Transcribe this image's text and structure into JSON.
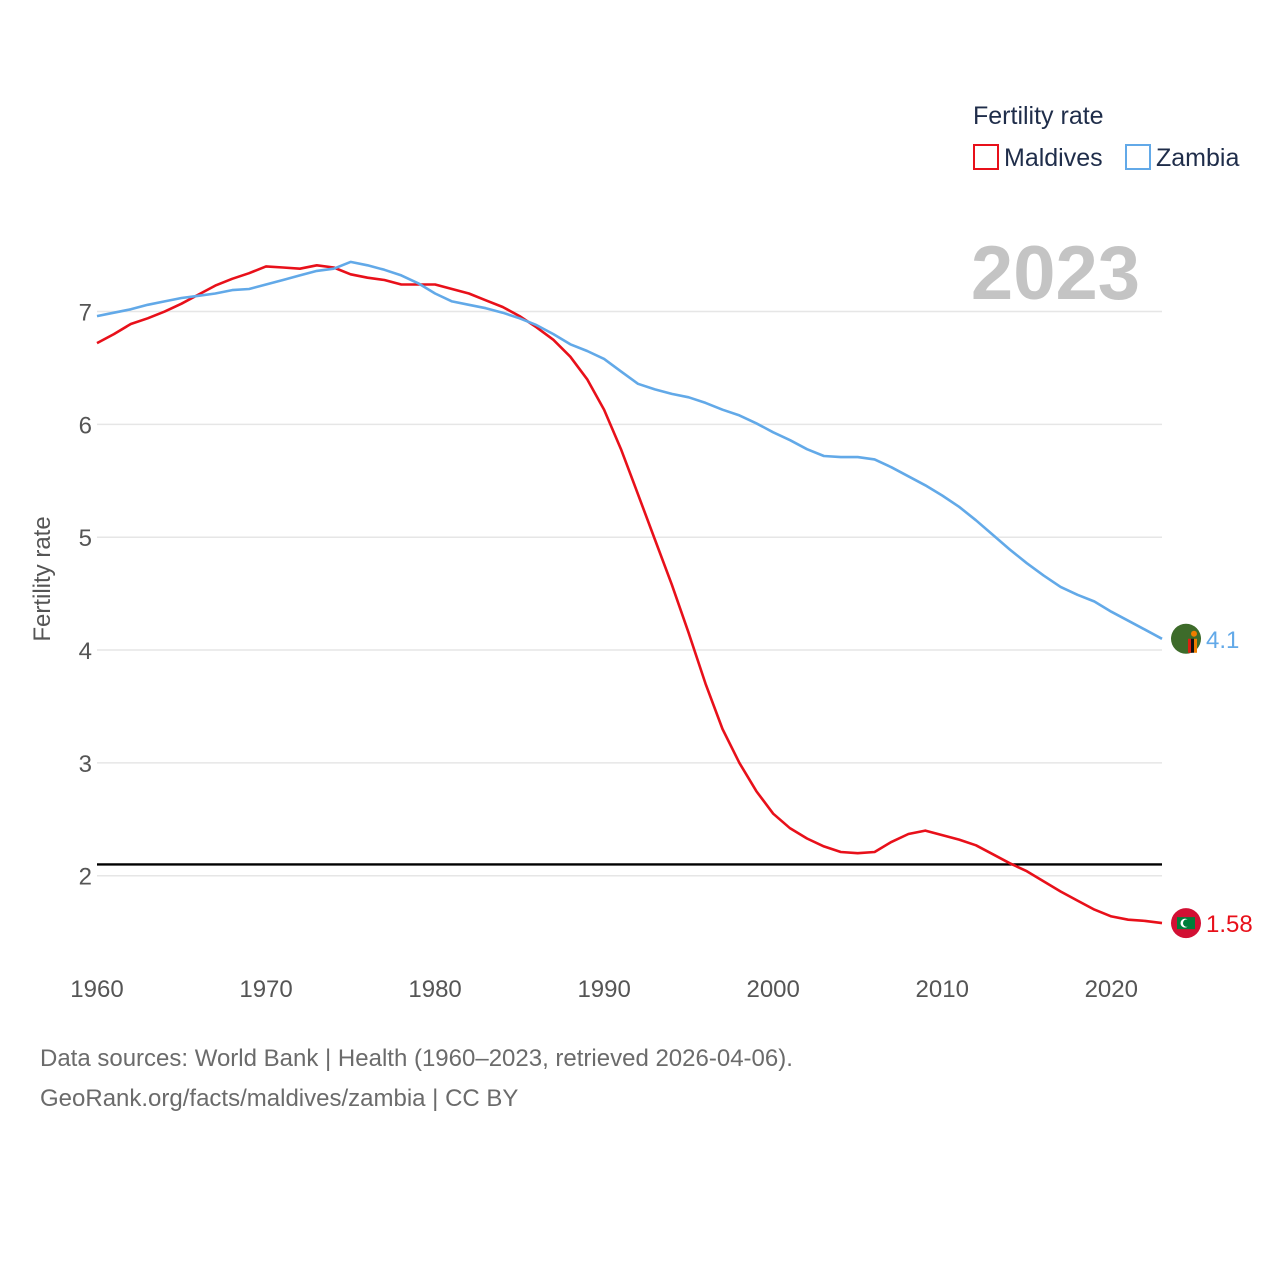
{
  "chart_data": {
    "type": "line",
    "title": "",
    "year_stamp": "2023",
    "ylabel": "Fertility rate",
    "xlabel": "",
    "xlim": [
      1960,
      2023
    ],
    "ylim": [
      1.2,
      7.9
    ],
    "x_ticks": [
      1960,
      1970,
      1980,
      1990,
      2000,
      2010,
      2020
    ],
    "y_ticks": [
      2,
      3,
      4,
      5,
      6,
      7
    ],
    "grid": true,
    "reference_line": {
      "value": 2.1,
      "color": "#000000"
    },
    "legend": {
      "title": "Fertility rate",
      "position": "top-right"
    },
    "x": [
      1960,
      1961,
      1962,
      1963,
      1964,
      1965,
      1966,
      1967,
      1968,
      1969,
      1970,
      1971,
      1972,
      1973,
      1974,
      1975,
      1976,
      1977,
      1978,
      1979,
      1980,
      1981,
      1982,
      1983,
      1984,
      1985,
      1986,
      1987,
      1988,
      1989,
      1990,
      1991,
      1992,
      1993,
      1994,
      1995,
      1996,
      1997,
      1998,
      1999,
      2000,
      2001,
      2002,
      2003,
      2004,
      2005,
      2006,
      2007,
      2008,
      2009,
      2010,
      2011,
      2012,
      2013,
      2014,
      2015,
      2016,
      2017,
      2018,
      2019,
      2020,
      2021,
      2022,
      2023
    ],
    "series": [
      {
        "name": "Maldives",
        "color": "#e8101a",
        "end_label": "1.58",
        "flag_icon": "maldives-flag-icon",
        "values": [
          6.72,
          6.8,
          6.89,
          6.94,
          7.0,
          7.07,
          7.15,
          7.23,
          7.29,
          7.34,
          7.4,
          7.39,
          7.38,
          7.41,
          7.39,
          7.33,
          7.3,
          7.28,
          7.24,
          7.24,
          7.24,
          7.2,
          7.16,
          7.1,
          7.04,
          6.96,
          6.86,
          6.75,
          6.6,
          6.4,
          6.13,
          5.78,
          5.38,
          4.98,
          4.58,
          4.15,
          3.7,
          3.3,
          3.0,
          2.75,
          2.55,
          2.42,
          2.33,
          2.26,
          2.21,
          2.2,
          2.21,
          2.3,
          2.37,
          2.4,
          2.36,
          2.32,
          2.27,
          2.19,
          2.11,
          2.04,
          1.95,
          1.86,
          1.78,
          1.7,
          1.64,
          1.61,
          1.6,
          1.58
        ]
      },
      {
        "name": "Zambia",
        "color": "#62a9e8",
        "end_label": "4.1",
        "flag_icon": "zambia-flag-icon",
        "values": [
          6.96,
          6.99,
          7.02,
          7.06,
          7.09,
          7.12,
          7.14,
          7.16,
          7.19,
          7.2,
          7.24,
          7.28,
          7.32,
          7.36,
          7.38,
          7.44,
          7.41,
          7.37,
          7.32,
          7.25,
          7.16,
          7.09,
          7.06,
          7.03,
          6.99,
          6.94,
          6.88,
          6.8,
          6.71,
          6.65,
          6.58,
          6.47,
          6.36,
          6.31,
          6.27,
          6.24,
          6.19,
          6.13,
          6.08,
          6.01,
          5.93,
          5.86,
          5.78,
          5.72,
          5.71,
          5.71,
          5.69,
          5.62,
          5.54,
          5.46,
          5.37,
          5.27,
          5.15,
          5.02,
          4.89,
          4.77,
          4.66,
          4.56,
          4.49,
          4.43,
          4.34,
          4.26,
          4.18,
          4.1
        ]
      }
    ]
  },
  "footer": {
    "line1": "Data sources: World Bank | Health (1960–2023, retrieved 2026-04-06).",
    "line2": "GeoRank.org/facts/maldives/zambia | CC BY"
  }
}
